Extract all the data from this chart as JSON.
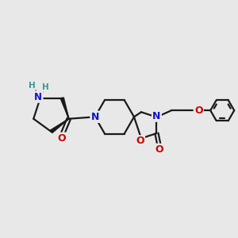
{
  "bg_color": "#e8e8e8",
  "bond_color": "#1a1a1a",
  "N_color": "#1111cc",
  "O_color": "#cc0000",
  "H_color": "#339999",
  "figsize": [
    3.0,
    3.0
  ],
  "dpi": 100,
  "xlim": [
    0,
    10
  ],
  "ylim": [
    0,
    10
  ]
}
